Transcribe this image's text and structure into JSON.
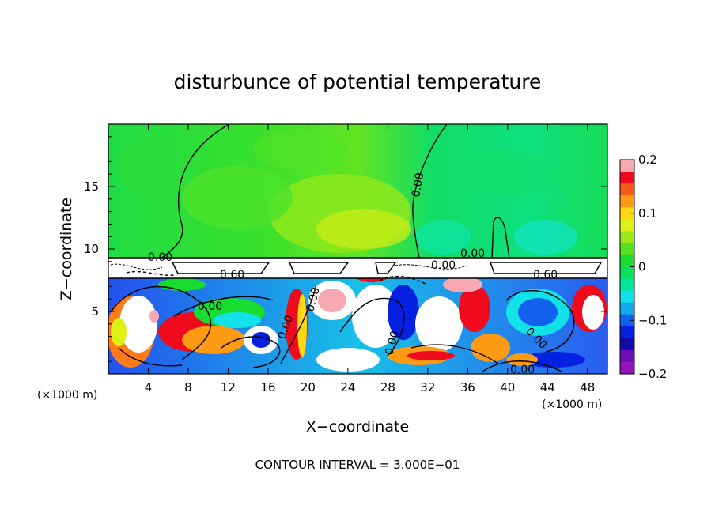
{
  "chart_data": {
    "type": "heatmap",
    "title": "disturbunce of potential temperature",
    "xlabel": "X−coordinate",
    "ylabel": "Z−coordinate",
    "x_unit_label": "(×1000 m)",
    "y_unit_label": "(×1000 m)",
    "xlim": [
      0,
      50
    ],
    "ylim": [
      0,
      20
    ],
    "x_ticks": [
      4,
      8,
      12,
      16,
      20,
      24,
      28,
      32,
      36,
      40,
      44,
      48
    ],
    "y_ticks": [
      5,
      10,
      15
    ],
    "colorbar": {
      "range": [
        -0.2,
        0.2
      ],
      "tick_labels": [
        "0.2",
        "0.1",
        "0",
        "−0.1",
        "−0.2"
      ],
      "colors": [
        "#f7a8b0",
        "#ef0a1e",
        "#f55a16",
        "#ff9a14",
        "#ffd714",
        "#dff013",
        "#9ae91a",
        "#56e224",
        "#18dc2f",
        "#0edc5c",
        "#00e59c",
        "#11e2e8",
        "#13a8ea",
        "#1260ee",
        "#0420e0",
        "#130ba8",
        "#6b10b6",
        "#9512c0"
      ]
    },
    "contour_labels": [
      "0.00",
      "0.60",
      "0.00",
      "0.00",
      "0.00",
      "0.00",
      "0.00",
      "0.00",
      "0.00",
      "0.60",
      "0.00",
      "0.00"
    ],
    "footnote": "CONTOUR INTERVAL = 3.000E−01"
  }
}
